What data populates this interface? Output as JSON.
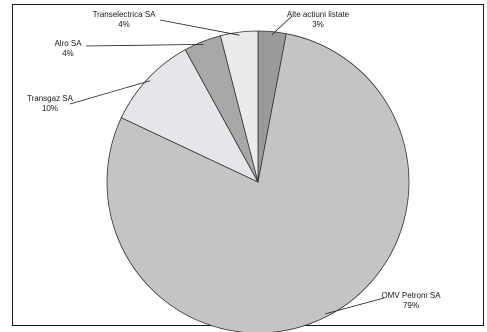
{
  "chart_data": {
    "type": "pie",
    "slices": [
      {
        "label": "Alte actiuni listate",
        "value": 3,
        "value_label": "3%",
        "color": "#9a9a9a"
      },
      {
        "label": "OMV Petrom SA",
        "value": 79,
        "value_label": "79%",
        "color": "#c4c4c4"
      },
      {
        "label": "Transgaz SA",
        "value": 10,
        "value_label": "10%",
        "color": "#e4e6ea"
      },
      {
        "label": "Alro SA",
        "value": 4,
        "value_label": "4%",
        "color": "#a8a8a8"
      },
      {
        "label": "Transelectrica SA",
        "value": 4,
        "value_label": "4%",
        "color": "#ebebeb"
      }
    ]
  }
}
